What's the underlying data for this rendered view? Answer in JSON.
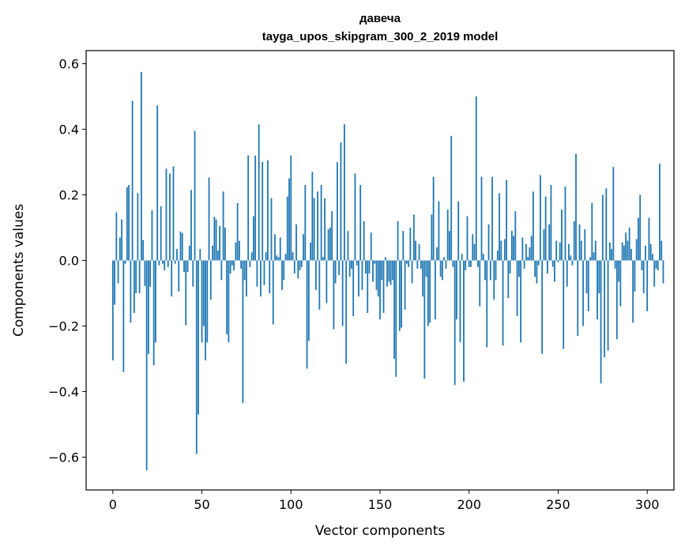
{
  "chart_data": {
    "type": "bar",
    "title": "давеча",
    "subtitle": "tayga_upos_skipgram_300_2_2019 model",
    "xlabel": "Vector components",
    "ylabel": "Components values",
    "xlim": [
      -15,
      315
    ],
    "ylim": [
      -0.7,
      0.64
    ],
    "xticks": [
      0,
      50,
      100,
      150,
      200,
      250,
      300
    ],
    "xtick_labels": [
      "0",
      "50",
      "100",
      "150",
      "200",
      "250",
      "300"
    ],
    "yticks": [
      -0.6,
      -0.4,
      -0.2,
      0.0,
      0.2,
      0.4,
      0.6
    ],
    "ytick_labels": [
      "−0.6",
      "−0.4",
      "−0.2",
      "0.0",
      "0.2",
      "0.4",
      "0.6"
    ],
    "grid": false,
    "legend": "none",
    "bar_color": "#1f77b4",
    "values": [
      -0.305,
      -0.135,
      0.147,
      -0.07,
      0.07,
      0.125,
      -0.34,
      -0.01,
      0.223,
      0.23,
      -0.19,
      0.487,
      -0.16,
      -0.1,
      0.205,
      -0.1,
      0.575,
      0.062,
      -0.078,
      -0.64,
      -0.285,
      -0.08,
      0.153,
      -0.32,
      -0.25,
      0.473,
      -0.015,
      0.165,
      -0.01,
      -0.03,
      0.28,
      -0.02,
      0.265,
      -0.11,
      0.287,
      -0.01,
      0.035,
      -0.095,
      0.088,
      0.083,
      -0.035,
      -0.198,
      -0.035,
      0.045,
      0.215,
      -0.08,
      0.395,
      -0.59,
      -0.47,
      0.035,
      -0.25,
      -0.2,
      -0.305,
      -0.25,
      0.253,
      -0.12,
      0.045,
      0.133,
      0.125,
      0.03,
      0.105,
      -0.06,
      0.21,
      0.1,
      -0.225,
      -0.25,
      -0.04,
      -0.015,
      -0.03,
      0.055,
      0.175,
      0.06,
      -0.025,
      -0.435,
      -0.06,
      -0.11,
      0.32,
      -0.02,
      0.025,
      0.135,
      0.32,
      -0.08,
      0.415,
      -0.11,
      0.3,
      -0.075,
      0.025,
      0.305,
      -0.1,
      0.19,
      -0.195,
      0.08,
      0.015,
      0.01,
      0.07,
      -0.09,
      -0.06,
      0.02,
      0.195,
      0.25,
      0.32,
      0.025,
      -0.04,
      0.11,
      -0.055,
      -0.03,
      -0.02,
      0.08,
      0.23,
      -0.33,
      -0.245,
      0.055,
      0.27,
      0.19,
      -0.09,
      0.21,
      -0.15,
      0.23,
      0.01,
      0.19,
      -0.13,
      0.095,
      0.1,
      0.15,
      -0.21,
      -0.07,
      0.3,
      -0.045,
      0.36,
      -0.2,
      0.415,
      -0.315,
      0.09,
      -0.05,
      -0.025,
      -0.17,
      0.265,
      -0.015,
      -0.11,
      0.23,
      -0.09,
      0.12,
      -0.04,
      -0.16,
      -0.04,
      0.085,
      -0.065,
      -0.01,
      -0.09,
      -0.11,
      -0.18,
      -0.06,
      -0.16,
      0.01,
      -0.08,
      -0.065,
      -0.075,
      -0.06,
      -0.3,
      -0.355,
      0.12,
      -0.215,
      -0.205,
      0.09,
      -0.15,
      -0.01,
      -0.02,
      0.1,
      -0.07,
      0.14,
      0.06,
      -0.025,
      0.05,
      -0.025,
      -0.11,
      -0.36,
      -0.05,
      -0.2,
      -0.19,
      0.14,
      0.255,
      -0.18,
      0.04,
      0.18,
      -0.05,
      -0.06,
      0.01,
      -0.025,
      0.155,
      0.09,
      0.38,
      -0.02,
      -0.38,
      -0.18,
      0.18,
      -0.25,
      0.02,
      -0.37,
      -0.03,
      0.135,
      -0.02,
      -0.02,
      0.08,
      0.05,
      0.5,
      -0.02,
      -0.14,
      0.255,
      0.02,
      -0.06,
      -0.265,
      0.11,
      -0.06,
      0.255,
      -0.12,
      -0.06,
      0.03,
      0.205,
      0.06,
      -0.26,
      0.065,
      0.245,
      -0.115,
      -0.04,
      0.09,
      0.075,
      0.15,
      -0.17,
      -0.05,
      -0.25,
      0.07,
      -0.025,
      0.05,
      0.01,
      0.04,
      0.075,
      0.21,
      -0.05,
      -0.07,
      -0.015,
      0.26,
      -0.285,
      0.095,
      0.195,
      -0.04,
      0.11,
      0.23,
      -0.02,
      -0.065,
      0.06,
      -0.005,
      0.055,
      0.155,
      -0.27,
      0.225,
      -0.08,
      0.05,
      0.015,
      -0.015,
      0.12,
      0.325,
      -0.23,
      0.11,
      0.06,
      -0.2,
      0.095,
      -0.1,
      -0.155,
      0.01,
      0.175,
      0.025,
      0.06,
      -0.18,
      -0.1,
      -0.375,
      0.2,
      -0.295,
      0.22,
      -0.275,
      0.055,
      0.035,
      0.285,
      -0.025,
      -0.24,
      -0.065,
      -0.14,
      0.055,
      0.045,
      0.085,
      0.06,
      0.1,
      0.035,
      -0.19,
      -0.095,
      0.065,
      0.13,
      0.2,
      -0.03,
      -0.1,
      0.045,
      -0.155,
      0.13,
      0.05,
      0.02,
      -0.08,
      -0.025,
      -0.03,
      0.295,
      0.06,
      -0.07
    ]
  }
}
